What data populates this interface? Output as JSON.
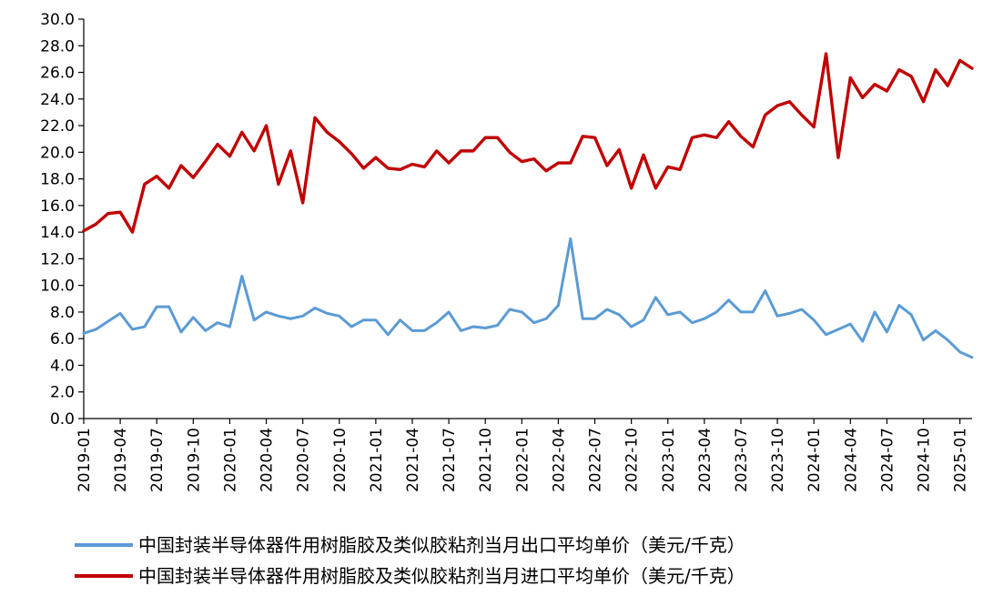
{
  "chart_data": {
    "type": "line",
    "title": "",
    "xlabel": "",
    "ylabel": "",
    "ylim": [
      0,
      30
    ],
    "y_ticks": [
      "0.0",
      "2.0",
      "4.0",
      "6.0",
      "8.0",
      "10.0",
      "12.0",
      "14.0",
      "16.0",
      "18.0",
      "20.0",
      "22.0",
      "24.0",
      "26.0",
      "28.0",
      "30.0"
    ],
    "x_start": "2019-01",
    "x_tick_labels": [
      "2019-01",
      "2019-04",
      "2019-07",
      "2019-10",
      "2020-01",
      "2020-04",
      "2020-07",
      "2020-10",
      "2021-01",
      "2021-04",
      "2021-07",
      "2021-10",
      "2022-01",
      "2022-04",
      "2022-07",
      "2022-10",
      "2023-01",
      "2023-04",
      "2023-07",
      "2023-10",
      "2024-01",
      "2024-04",
      "2024-07",
      "2024-10",
      "2025-01"
    ],
    "grid": false,
    "legend_position": "bottom",
    "series": [
      {
        "name": "中国封装半导体器件用树脂胶及类似胶粘剂当月出口平均单价（美元/千克）",
        "color": "#5b9bd5",
        "values": [
          6.4,
          6.7,
          7.3,
          7.9,
          6.7,
          6.9,
          8.4,
          8.4,
          6.5,
          7.6,
          6.6,
          7.2,
          6.9,
          10.7,
          7.4,
          8.0,
          7.7,
          7.5,
          7.7,
          8.3,
          7.9,
          7.7,
          6.9,
          7.4,
          7.4,
          6.3,
          7.4,
          6.6,
          6.6,
          7.2,
          8.0,
          6.6,
          6.9,
          6.8,
          7.0,
          8.2,
          8.0,
          7.2,
          7.5,
          8.5,
          13.5,
          7.5,
          7.5,
          8.2,
          7.8,
          6.9,
          7.4,
          9.1,
          7.8,
          8.0,
          7.2,
          7.5,
          8.0,
          8.9,
          8.0,
          8.0,
          9.6,
          7.7,
          7.9,
          8.2,
          7.4,
          6.3,
          6.7,
          7.1,
          5.8,
          8.0,
          6.5,
          8.5,
          7.8,
          5.9,
          6.6,
          5.9,
          5.0,
          4.6
        ]
      },
      {
        "name": "中国封装半导体器件用树脂胶及类似胶粘剂当月进口平均单价（美元/千克）",
        "color": "#c00000",
        "values": [
          14.1,
          14.6,
          15.4,
          15.5,
          14.0,
          17.6,
          18.2,
          17.3,
          19.0,
          18.1,
          19.3,
          20.6,
          19.7,
          21.5,
          20.1,
          22.0,
          17.6,
          20.1,
          16.2,
          22.6,
          21.5,
          20.8,
          19.9,
          18.8,
          19.6,
          18.8,
          18.7,
          19.1,
          18.9,
          20.1,
          19.2,
          20.1,
          20.1,
          21.1,
          21.1,
          20.0,
          19.3,
          19.5,
          18.6,
          19.2,
          19.2,
          21.2,
          21.1,
          19.0,
          20.2,
          17.3,
          19.8,
          17.3,
          18.9,
          18.7,
          21.1,
          21.3,
          21.1,
          22.3,
          21.2,
          20.4,
          22.8,
          23.5,
          23.8,
          22.8,
          21.9,
          27.4,
          19.6,
          25.6,
          24.1,
          25.1,
          24.6,
          26.2,
          25.7,
          23.8,
          26.2,
          25.0,
          26.9,
          26.3
        ]
      }
    ]
  }
}
